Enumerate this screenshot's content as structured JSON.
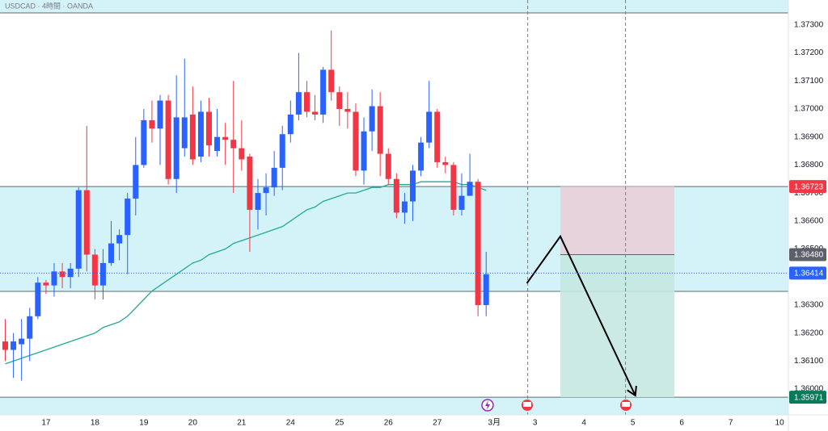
{
  "chart_data": {
    "type": "candlestick",
    "title": "USDCAD · 4時間 · OANDA",
    "up_color": "#2962ff",
    "down_color": "#f23645",
    "open": [
      1.3617,
      1.3614,
      1.3616,
      1.3618,
      1.3626,
      1.3638,
      1.3637,
      1.3642,
      1.364,
      1.3643,
      1.3671,
      1.3648,
      1.3637,
      1.3645,
      1.3652,
      1.3655,
      1.3668,
      1.368,
      1.3696,
      1.3693,
      1.3703,
      1.3675,
      1.3686,
      1.3698,
      1.3683,
      1.3699,
      1.3685,
      1.369,
      1.3689,
      1.3686,
      1.3683,
      1.3664,
      1.367,
      1.3672,
      1.3679,
      1.3691,
      1.3698,
      1.3706,
      1.3699,
      1.3698,
      1.3714,
      1.3706,
      1.37,
      1.3699,
      1.3678,
      1.3692,
      1.3701,
      1.3684,
      1.3675,
      1.3663,
      1.3667,
      1.3678,
      1.3688,
      1.3699,
      1.3681,
      1.368,
      1.3664,
      1.3669,
      1.3674,
      1.363
    ],
    "high": [
      1.3625,
      1.362,
      1.3625,
      1.3629,
      1.364,
      1.3639,
      1.3645,
      1.3645,
      1.3645,
      1.3672,
      1.3694,
      1.365,
      1.365,
      1.366,
      1.3657,
      1.367,
      1.369,
      1.37,
      1.3703,
      1.3705,
      1.3705,
      1.3712,
      1.3718,
      1.3708,
      1.3703,
      1.3704,
      1.37,
      1.3695,
      1.371,
      1.3696,
      1.3684,
      1.3675,
      1.3677,
      1.3685,
      1.3694,
      1.3703,
      1.372,
      1.371,
      1.3705,
      1.3715,
      1.3728,
      1.3708,
      1.3706,
      1.3702,
      1.3697,
      1.3707,
      1.3706,
      1.3686,
      1.3677,
      1.367,
      1.368,
      1.369,
      1.371,
      1.37,
      1.3683,
      1.3681,
      1.3677,
      1.3684,
      1.3675,
      1.3649
    ],
    "low": [
      1.361,
      1.3604,
      1.3603,
      1.361,
      1.3625,
      1.3634,
      1.3633,
      1.3636,
      1.3636,
      1.364,
      1.3642,
      1.3632,
      1.3632,
      1.3644,
      1.3646,
      1.3641,
      1.3662,
      1.3679,
      1.3688,
      1.368,
      1.3673,
      1.367,
      1.3683,
      1.368,
      1.3681,
      1.3683,
      1.3683,
      1.368,
      1.367,
      1.3678,
      1.3649,
      1.3657,
      1.3662,
      1.3669,
      1.3671,
      1.3688,
      1.3696,
      1.3697,
      1.3696,
      1.3695,
      1.3703,
      1.3694,
      1.3693,
      1.3676,
      1.3673,
      1.3685,
      1.3676,
      1.3673,
      1.3661,
      1.3659,
      1.366,
      1.3676,
      1.3686,
      1.3679,
      1.3677,
      1.3662,
      1.3662,
      1.3669,
      1.3626,
      1.3626
    ],
    "close": [
      1.3614,
      1.3617,
      1.3618,
      1.3626,
      1.3638,
      1.3637,
      1.3642,
      1.364,
      1.3643,
      1.3671,
      1.3648,
      1.3637,
      1.3645,
      1.3652,
      1.3655,
      1.3668,
      1.368,
      1.3696,
      1.3693,
      1.3703,
      1.3675,
      1.3697,
      1.3697,
      1.3682,
      1.3699,
      1.3687,
      1.369,
      1.3689,
      1.3686,
      1.3682,
      1.3664,
      1.367,
      1.3672,
      1.3679,
      1.3691,
      1.3698,
      1.3706,
      1.3699,
      1.3698,
      1.3714,
      1.3706,
      1.37,
      1.3699,
      1.3678,
      1.3692,
      1.3701,
      1.3684,
      1.3675,
      1.3663,
      1.3667,
      1.3678,
      1.3688,
      1.3699,
      1.3681,
      1.368,
      1.3664,
      1.3669,
      1.3674,
      1.363,
      1.3641
    ],
    "ma": {
      "color": "#22ab94",
      "values": [
        1.3609,
        1.361,
        1.3611,
        1.3612,
        1.3613,
        1.3614,
        1.3615,
        1.3616,
        1.3617,
        1.3618,
        1.3619,
        1.362,
        1.3622,
        1.3623,
        1.3624,
        1.3626,
        1.3629,
        1.3632,
        1.3635,
        1.3637,
        1.3639,
        1.3641,
        1.3643,
        1.3645,
        1.3646,
        1.3648,
        1.3649,
        1.365,
        1.3652,
        1.3653,
        1.3654,
        1.3655,
        1.3656,
        1.3657,
        1.3658,
        1.366,
        1.3662,
        1.3664,
        1.3665,
        1.3667,
        1.3668,
        1.3669,
        1.367,
        1.367,
        1.3671,
        1.3672,
        1.3672,
        1.3673,
        1.3673,
        1.3673,
        1.3673,
        1.3674,
        1.3674,
        1.3674,
        1.3674,
        1.3674,
        1.3673,
        1.3673,
        1.3672,
        1.3671
      ]
    },
    "ylim": [
      1.35908,
      1.37389
    ],
    "yticks": [
      {
        "value": 1.373,
        "label": "1.37300"
      },
      {
        "value": 1.372,
        "label": "1.37200"
      },
      {
        "value": 1.371,
        "label": "1.37100"
      },
      {
        "value": 1.37,
        "label": "1.37000"
      },
      {
        "value": 1.369,
        "label": "1.36900"
      },
      {
        "value": 1.368,
        "label": "1.36800"
      },
      {
        "value": 1.367,
        "label": "1.36700"
      },
      {
        "value": 1.366,
        "label": "1.36600"
      },
      {
        "value": 1.365,
        "label": "1.36500"
      },
      {
        "value": 1.363,
        "label": "1.36300"
      },
      {
        "value": 1.362,
        "label": "1.36200"
      },
      {
        "value": 1.361,
        "label": "1.36100"
      },
      {
        "value": 1.36,
        "label": "1.36000"
      }
    ],
    "xlim": [
      -0.645,
      96.08
    ],
    "xticks": [
      {
        "value": 5,
        "label": "17"
      },
      {
        "value": 11,
        "label": "18"
      },
      {
        "value": 17,
        "label": "19"
      },
      {
        "value": 23,
        "label": "20"
      },
      {
        "value": 29,
        "label": "21"
      },
      {
        "value": 35,
        "label": "24"
      },
      {
        "value": 41,
        "label": "25"
      },
      {
        "value": 47,
        "label": "26"
      },
      {
        "value": 53,
        "label": "27"
      },
      {
        "value": 60,
        "label": "3月"
      },
      {
        "value": 65,
        "label": "3"
      },
      {
        "value": 71,
        "label": "4"
      },
      {
        "value": 77,
        "label": "5"
      },
      {
        "value": 83,
        "label": "6"
      },
      {
        "value": 89,
        "label": "7"
      },
      {
        "value": 95,
        "label": "10"
      }
    ],
    "grid": false,
    "zones": [
      {
        "low": 1.37343
      },
      {
        "low": 1.36349,
        "high": 1.36723
      },
      {
        "high": 1.35971
      }
    ],
    "zone_color": "#d4f3f8",
    "zone_line": "#5b6b70",
    "position": {
      "x": [
        68.1,
        82.1
      ],
      "stop": 1.36723,
      "entry": 1.3648,
      "target": 1.35971,
      "stop_color": "#e8cfd8",
      "target_color": "#c4e8e0"
    },
    "projection": {
      "x": [
        64.0,
        68.1,
        77.3
      ],
      "y": [
        1.36378,
        1.36545,
        1.35977
      ],
      "color": "#000000"
    },
    "vlines": [
      64.1,
      76.1
    ],
    "price_labels": [
      {
        "value": 1.36723,
        "label": "1.36723",
        "color": "#f23645"
      },
      {
        "value": 1.3648,
        "label": "1.36480",
        "color": "#5d606b"
      },
      {
        "value": 1.36414,
        "label": "1.36414",
        "color": "#2962ff",
        "dotted": true
      },
      {
        "value": 1.35971,
        "label": "1.35971",
        "color": "#0b7a5a"
      }
    ]
  }
}
